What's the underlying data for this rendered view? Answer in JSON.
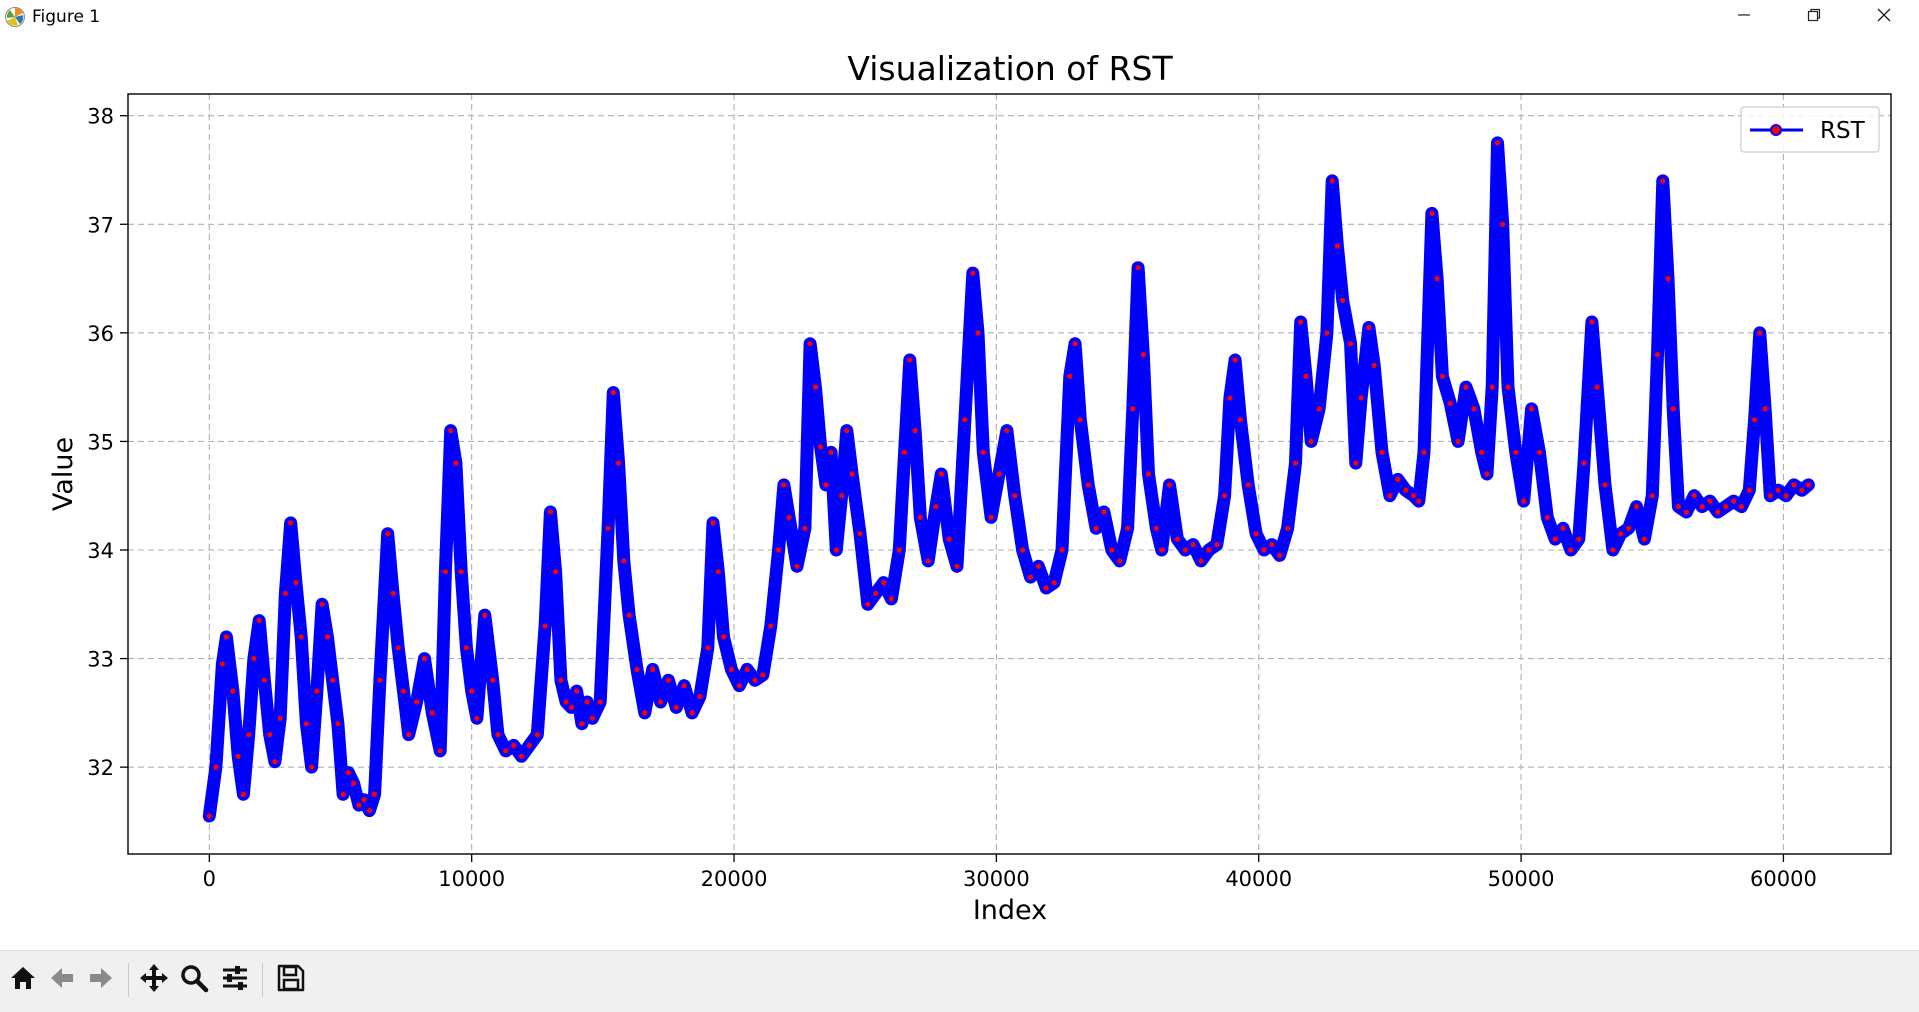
{
  "window": {
    "title": "Figure 1",
    "icons": [
      "matplotlib-logo-icon",
      "minimize-icon",
      "restore-icon",
      "close-icon"
    ]
  },
  "toolbar": {
    "tools": [
      "home-icon",
      "back-icon",
      "forward-icon",
      "pan-icon",
      "zoom-icon",
      "configure-subplots-icon",
      "save-icon"
    ]
  },
  "colors": {
    "line": "#0000ff",
    "marker": "#ff0000",
    "grid": "#b0b0b0",
    "toolbar_bg": "#f0f0f0"
  },
  "chart_data": {
    "type": "line",
    "title": "Visualization of RST",
    "xlabel": "Index",
    "ylabel": "Value",
    "xlim": [
      -3100,
      64100
    ],
    "ylim": [
      31.2,
      38.2
    ],
    "xticks": [
      0,
      10000,
      20000,
      30000,
      40000,
      50000,
      60000
    ],
    "yticks": [
      32,
      33,
      34,
      35,
      36,
      37,
      38
    ],
    "grid": true,
    "grid_style": "dashed",
    "legend": {
      "position": "upper right",
      "entries": [
        "RST"
      ]
    },
    "series": [
      {
        "name": "RST",
        "marker": "o",
        "points": [
          [
            0,
            31.55
          ],
          [
            250,
            32.0
          ],
          [
            500,
            32.95
          ],
          [
            650,
            33.2
          ],
          [
            900,
            32.7
          ],
          [
            1100,
            32.1
          ],
          [
            1300,
            31.75
          ],
          [
            1500,
            32.3
          ],
          [
            1700,
            33.0
          ],
          [
            1900,
            33.35
          ],
          [
            2100,
            32.8
          ],
          [
            2300,
            32.3
          ],
          [
            2500,
            32.05
          ],
          [
            2700,
            32.45
          ],
          [
            2900,
            33.6
          ],
          [
            3100,
            34.25
          ],
          [
            3300,
            33.7
          ],
          [
            3500,
            33.2
          ],
          [
            3700,
            32.4
          ],
          [
            3900,
            32.0
          ],
          [
            4100,
            32.7
          ],
          [
            4300,
            33.5
          ],
          [
            4500,
            33.2
          ],
          [
            4700,
            32.8
          ],
          [
            4900,
            32.4
          ],
          [
            5100,
            31.75
          ],
          [
            5300,
            31.95
          ],
          [
            5500,
            31.85
          ],
          [
            5700,
            31.65
          ],
          [
            5900,
            31.7
          ],
          [
            6100,
            31.6
          ],
          [
            6300,
            31.75
          ],
          [
            6500,
            32.8
          ],
          [
            6800,
            34.15
          ],
          [
            7000,
            33.6
          ],
          [
            7200,
            33.1
          ],
          [
            7400,
            32.7
          ],
          [
            7600,
            32.3
          ],
          [
            7900,
            32.6
          ],
          [
            8200,
            33.0
          ],
          [
            8500,
            32.5
          ],
          [
            8800,
            32.15
          ],
          [
            9000,
            33.8
          ],
          [
            9200,
            35.1
          ],
          [
            9400,
            34.8
          ],
          [
            9600,
            33.8
          ],
          [
            9800,
            33.1
          ],
          [
            10000,
            32.7
          ],
          [
            10200,
            32.45
          ],
          [
            10500,
            33.4
          ],
          [
            10800,
            32.8
          ],
          [
            11000,
            32.3
          ],
          [
            11300,
            32.15
          ],
          [
            11600,
            32.2
          ],
          [
            11900,
            32.1
          ],
          [
            12200,
            32.2
          ],
          [
            12500,
            32.3
          ],
          [
            12800,
            33.3
          ],
          [
            13000,
            34.35
          ],
          [
            13200,
            33.8
          ],
          [
            13400,
            32.8
          ],
          [
            13600,
            32.6
          ],
          [
            13800,
            32.55
          ],
          [
            14000,
            32.7
          ],
          [
            14200,
            32.4
          ],
          [
            14400,
            32.6
          ],
          [
            14600,
            32.45
          ],
          [
            14900,
            32.6
          ],
          [
            15200,
            34.2
          ],
          [
            15400,
            35.45
          ],
          [
            15600,
            34.8
          ],
          [
            15800,
            33.9
          ],
          [
            16000,
            33.4
          ],
          [
            16300,
            32.9
          ],
          [
            16600,
            32.5
          ],
          [
            16900,
            32.9
          ],
          [
            17200,
            32.6
          ],
          [
            17500,
            32.8
          ],
          [
            17800,
            32.55
          ],
          [
            18100,
            32.75
          ],
          [
            18400,
            32.5
          ],
          [
            18700,
            32.65
          ],
          [
            19000,
            33.1
          ],
          [
            19200,
            34.25
          ],
          [
            19400,
            33.8
          ],
          [
            19600,
            33.2
          ],
          [
            19900,
            32.9
          ],
          [
            20200,
            32.75
          ],
          [
            20500,
            32.9
          ],
          [
            20800,
            32.8
          ],
          [
            21100,
            32.85
          ],
          [
            21400,
            33.3
          ],
          [
            21700,
            34.0
          ],
          [
            21900,
            34.6
          ],
          [
            22100,
            34.3
          ],
          [
            22400,
            33.85
          ],
          [
            22700,
            34.2
          ],
          [
            22900,
            35.9
          ],
          [
            23100,
            35.5
          ],
          [
            23300,
            34.95
          ],
          [
            23500,
            34.6
          ],
          [
            23700,
            34.9
          ],
          [
            23900,
            34.0
          ],
          [
            24100,
            34.5
          ],
          [
            24300,
            35.1
          ],
          [
            24500,
            34.7
          ],
          [
            24800,
            34.15
          ],
          [
            25100,
            33.5
          ],
          [
            25400,
            33.6
          ],
          [
            25700,
            33.7
          ],
          [
            26000,
            33.55
          ],
          [
            26300,
            34.0
          ],
          [
            26500,
            34.9
          ],
          [
            26700,
            35.75
          ],
          [
            26900,
            35.1
          ],
          [
            27100,
            34.3
          ],
          [
            27400,
            33.9
          ],
          [
            27700,
            34.4
          ],
          [
            27900,
            34.7
          ],
          [
            28200,
            34.1
          ],
          [
            28500,
            33.85
          ],
          [
            28800,
            35.2
          ],
          [
            29100,
            36.55
          ],
          [
            29300,
            36.0
          ],
          [
            29500,
            34.9
          ],
          [
            29800,
            34.3
          ],
          [
            30100,
            34.7
          ],
          [
            30400,
            35.1
          ],
          [
            30700,
            34.5
          ],
          [
            31000,
            34.0
          ],
          [
            31300,
            33.75
          ],
          [
            31600,
            33.85
          ],
          [
            31900,
            33.65
          ],
          [
            32200,
            33.7
          ],
          [
            32500,
            34.0
          ],
          [
            32800,
            35.6
          ],
          [
            33000,
            35.9
          ],
          [
            33200,
            35.2
          ],
          [
            33500,
            34.6
          ],
          [
            33800,
            34.2
          ],
          [
            34100,
            34.35
          ],
          [
            34400,
            34.0
          ],
          [
            34700,
            33.9
          ],
          [
            35000,
            34.2
          ],
          [
            35200,
            35.3
          ],
          [
            35400,
            36.6
          ],
          [
            35600,
            35.8
          ],
          [
            35800,
            34.7
          ],
          [
            36100,
            34.2
          ],
          [
            36300,
            34.0
          ],
          [
            36600,
            34.6
          ],
          [
            36900,
            34.1
          ],
          [
            37200,
            34.0
          ],
          [
            37500,
            34.05
          ],
          [
            37800,
            33.9
          ],
          [
            38100,
            34.0
          ],
          [
            38400,
            34.05
          ],
          [
            38700,
            34.5
          ],
          [
            38900,
            35.4
          ],
          [
            39100,
            35.75
          ],
          [
            39300,
            35.2
          ],
          [
            39600,
            34.6
          ],
          [
            39900,
            34.15
          ],
          [
            40200,
            34.0
          ],
          [
            40500,
            34.05
          ],
          [
            40800,
            33.95
          ],
          [
            41100,
            34.2
          ],
          [
            41400,
            34.8
          ],
          [
            41600,
            36.1
          ],
          [
            41800,
            35.6
          ],
          [
            42000,
            35.0
          ],
          [
            42300,
            35.3
          ],
          [
            42600,
            36.0
          ],
          [
            42800,
            37.4
          ],
          [
            43000,
            36.8
          ],
          [
            43200,
            36.3
          ],
          [
            43500,
            35.9
          ],
          [
            43700,
            34.8
          ],
          [
            43900,
            35.4
          ],
          [
            44200,
            36.05
          ],
          [
            44400,
            35.7
          ],
          [
            44700,
            34.9
          ],
          [
            45000,
            34.5
          ],
          [
            45300,
            34.65
          ],
          [
            45600,
            34.55
          ],
          [
            45900,
            34.5
          ],
          [
            46100,
            34.45
          ],
          [
            46300,
            34.9
          ],
          [
            46600,
            37.1
          ],
          [
            46800,
            36.5
          ],
          [
            47000,
            35.6
          ],
          [
            47300,
            35.35
          ],
          [
            47600,
            35.0
          ],
          [
            47900,
            35.5
          ],
          [
            48200,
            35.3
          ],
          [
            48500,
            34.9
          ],
          [
            48700,
            34.7
          ],
          [
            48900,
            35.5
          ],
          [
            49100,
            37.75
          ],
          [
            49300,
            37.0
          ],
          [
            49500,
            35.5
          ],
          [
            49800,
            34.9
          ],
          [
            50100,
            34.45
          ],
          [
            50400,
            35.3
          ],
          [
            50700,
            34.9
          ],
          [
            51000,
            34.3
          ],
          [
            51300,
            34.1
          ],
          [
            51600,
            34.2
          ],
          [
            51900,
            34.0
          ],
          [
            52200,
            34.1
          ],
          [
            52400,
            34.8
          ],
          [
            52700,
            36.1
          ],
          [
            52900,
            35.5
          ],
          [
            53200,
            34.6
          ],
          [
            53500,
            34.0
          ],
          [
            53800,
            34.15
          ],
          [
            54100,
            34.2
          ],
          [
            54400,
            34.4
          ],
          [
            54700,
            34.1
          ],
          [
            55000,
            34.5
          ],
          [
            55200,
            35.8
          ],
          [
            55400,
            37.4
          ],
          [
            55600,
            36.5
          ],
          [
            55800,
            35.3
          ],
          [
            56000,
            34.4
          ],
          [
            56300,
            34.35
          ],
          [
            56600,
            34.5
          ],
          [
            56900,
            34.4
          ],
          [
            57200,
            34.45
          ],
          [
            57500,
            34.35
          ],
          [
            57800,
            34.4
          ],
          [
            58100,
            34.45
          ],
          [
            58400,
            34.4
          ],
          [
            58700,
            34.55
          ],
          [
            58900,
            35.2
          ],
          [
            59100,
            36.0
          ],
          [
            59300,
            35.3
          ],
          [
            59500,
            34.5
          ],
          [
            59800,
            34.55
          ],
          [
            60100,
            34.5
          ],
          [
            60400,
            34.6
          ],
          [
            60700,
            34.55
          ],
          [
            60950,
            34.6
          ]
        ]
      }
    ]
  }
}
